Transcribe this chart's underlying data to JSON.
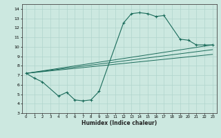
{
  "xlabel": "Humidex (Indice chaleur)",
  "xlim": [
    -0.5,
    23.5
  ],
  "ylim": [
    3,
    14.5
  ],
  "xticks": [
    0,
    1,
    2,
    3,
    4,
    5,
    6,
    7,
    8,
    9,
    10,
    11,
    12,
    13,
    14,
    15,
    16,
    17,
    18,
    19,
    20,
    21,
    22,
    23
  ],
  "yticks": [
    3,
    4,
    5,
    6,
    7,
    8,
    9,
    10,
    11,
    12,
    13,
    14
  ],
  "bg_color": "#cce8e0",
  "line_color": "#1a6b5a",
  "grid_color": "#b0d4cc",
  "line1_x": [
    0,
    1,
    2,
    4,
    5,
    6,
    7,
    8,
    9,
    12,
    13,
    14,
    15,
    16,
    17,
    19,
    20,
    21,
    22,
    23
  ],
  "line1_y": [
    7.2,
    6.7,
    6.3,
    4.8,
    5.2,
    4.4,
    4.3,
    4.4,
    5.3,
    12.5,
    13.5,
    13.6,
    13.5,
    13.2,
    13.3,
    10.8,
    10.7,
    10.2,
    10.2,
    10.2
  ],
  "line2_x": [
    0,
    23
  ],
  "line2_y": [
    7.2,
    10.2
  ],
  "line3_x": [
    0,
    23
  ],
  "line3_y": [
    7.2,
    9.7
  ],
  "line4_x": [
    0,
    23
  ],
  "line4_y": [
    7.2,
    9.2
  ]
}
